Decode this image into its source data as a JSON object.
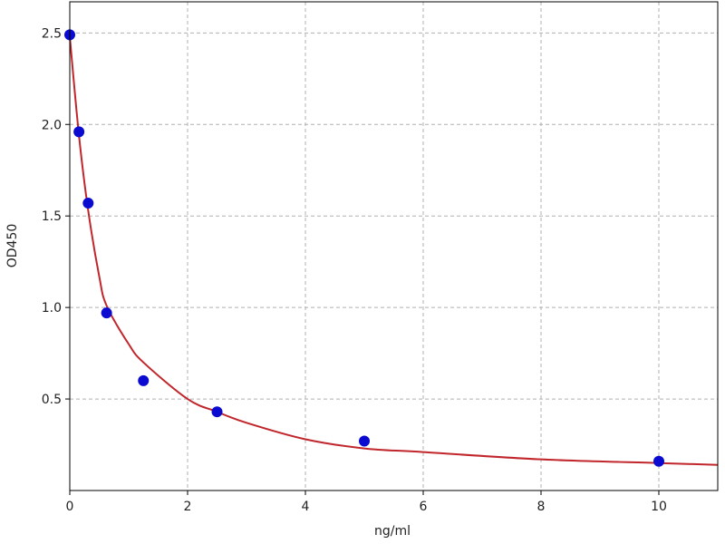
{
  "chart_data": {
    "type": "scatter",
    "xlabel": "ng/ml",
    "ylabel": "OD450",
    "xlim": [
      0,
      11
    ],
    "ylim": [
      0,
      2.67
    ],
    "xticks": [
      0,
      2,
      4,
      6,
      8,
      10
    ],
    "yticks": [
      0.5,
      {
        "value": 1,
        "label": "1.0"
      },
      1.5,
      {
        "value": 2,
        "label": "2.0"
      },
      2.5
    ],
    "grid": true,
    "series": [
      {
        "type": "scatter",
        "color": "#0a0ad0",
        "x": [
          0,
          0.156,
          0.3125,
          0.625,
          1.25,
          2.5,
          5,
          10
        ],
        "values": [
          2.49,
          1.96,
          1.57,
          0.97,
          0.6,
          0.43,
          0.27,
          0.16
        ]
      },
      {
        "type": "line",
        "color": "#c0262b",
        "x": [
          0,
          0.156,
          0.3125,
          0.5,
          0.625,
          1,
          1.25,
          2,
          2.5,
          3,
          4,
          5,
          6,
          8,
          10,
          11
        ],
        "values": [
          2.48,
          1.94,
          1.53,
          1.17,
          1.01,
          0.8,
          0.7,
          0.5,
          0.43,
          0.37,
          0.28,
          0.23,
          0.21,
          0.17,
          0.15,
          0.14
        ]
      }
    ]
  }
}
